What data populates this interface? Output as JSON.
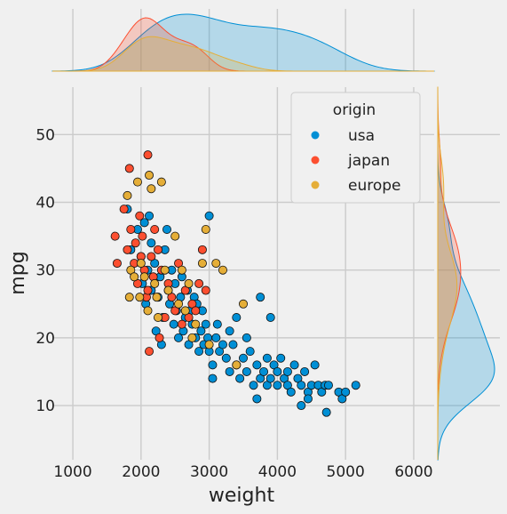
{
  "chart_data": {
    "type": "scatter",
    "xlabel": "weight",
    "ylabel": "mpg",
    "xlim": [
      700,
      6300
    ],
    "ylim": [
      2,
      57
    ],
    "xticks": [
      1000,
      2000,
      3000,
      4000,
      5000,
      6000
    ],
    "yticks": [
      10,
      20,
      30,
      40,
      50
    ],
    "grid": true,
    "legend": {
      "title": "origin",
      "placement": "top-right"
    },
    "marginals": {
      "top": "kde-by-series",
      "right": "kde-by-series"
    },
    "series": [
      {
        "name": "usa",
        "color": "#008fd5",
        "points": [
          [
            1800,
            39
          ],
          [
            1850,
            33
          ],
          [
            1950,
            36
          ],
          [
            2000,
            32
          ],
          [
            2020,
            28
          ],
          [
            2050,
            37
          ],
          [
            2070,
            25
          ],
          [
            2100,
            30
          ],
          [
            2120,
            38
          ],
          [
            2150,
            34
          ],
          [
            2150,
            27
          ],
          [
            2200,
            31
          ],
          [
            2220,
            21
          ],
          [
            2250,
            26
          ],
          [
            2280,
            29
          ],
          [
            2300,
            19
          ],
          [
            2320,
            23
          ],
          [
            2350,
            33
          ],
          [
            2380,
            36
          ],
          [
            2400,
            27
          ],
          [
            2420,
            25
          ],
          [
            2450,
            30
          ],
          [
            2480,
            22
          ],
          [
            2500,
            28
          ],
          [
            2520,
            24
          ],
          [
            2550,
            20
          ],
          [
            2580,
            26
          ],
          [
            2600,
            29
          ],
          [
            2620,
            21
          ],
          [
            2650,
            23
          ],
          [
            2680,
            27
          ],
          [
            2700,
            19
          ],
          [
            2720,
            24
          ],
          [
            2750,
            22
          ],
          [
            2780,
            26
          ],
          [
            2800,
            20
          ],
          [
            2820,
            25
          ],
          [
            2850,
            18
          ],
          [
            2880,
            21
          ],
          [
            2900,
            24
          ],
          [
            2920,
            19
          ],
          [
            2950,
            22
          ],
          [
            2980,
            20
          ],
          [
            3000,
            38
          ],
          [
            3000,
            18
          ],
          [
            3050,
            16
          ],
          [
            3050,
            14
          ],
          [
            3100,
            20
          ],
          [
            3120,
            22
          ],
          [
            3150,
            18
          ],
          [
            3200,
            19
          ],
          [
            3250,
            17
          ],
          [
            3300,
            21
          ],
          [
            3300,
            15
          ],
          [
            3350,
            19
          ],
          [
            3400,
            16
          ],
          [
            3400,
            23
          ],
          [
            3450,
            14
          ],
          [
            3500,
            17
          ],
          [
            3550,
            20
          ],
          [
            3550,
            15
          ],
          [
            3600,
            18
          ],
          [
            3650,
            13
          ],
          [
            3700,
            16
          ],
          [
            3700,
            11
          ],
          [
            3750,
            26
          ],
          [
            3750,
            14
          ],
          [
            3800,
            15
          ],
          [
            3850,
            17
          ],
          [
            3850,
            13
          ],
          [
            3900,
            23
          ],
          [
            3900,
            14
          ],
          [
            3950,
            16
          ],
          [
            4000,
            15
          ],
          [
            4000,
            13
          ],
          [
            4050,
            17
          ],
          [
            4100,
            14
          ],
          [
            4150,
            15
          ],
          [
            4150,
            13
          ],
          [
            4200,
            12
          ],
          [
            4250,
            16
          ],
          [
            4300,
            14
          ],
          [
            4350,
            13
          ],
          [
            4350,
            10
          ],
          [
            4400,
            15
          ],
          [
            4450,
            12
          ],
          [
            4450,
            11
          ],
          [
            4500,
            13
          ],
          [
            4550,
            16
          ],
          [
            4600,
            13
          ],
          [
            4650,
            12
          ],
          [
            4700,
            13
          ],
          [
            4720,
            9
          ],
          [
            4750,
            13
          ],
          [
            4900,
            12
          ],
          [
            4950,
            11
          ],
          [
            5000,
            12
          ],
          [
            5150,
            13
          ]
        ]
      },
      {
        "name": "japan",
        "color": "#fc4f30",
        "points": [
          [
            1620,
            35
          ],
          [
            1650,
            31
          ],
          [
            1750,
            39
          ],
          [
            1800,
            33
          ],
          [
            1830,
            45
          ],
          [
            1850,
            36
          ],
          [
            1900,
            31
          ],
          [
            1920,
            34
          ],
          [
            1950,
            28
          ],
          [
            1980,
            38
          ],
          [
            2000,
            32
          ],
          [
            2020,
            35
          ],
          [
            2050,
            30
          ],
          [
            2080,
            26
          ],
          [
            2100,
            47
          ],
          [
            2100,
            27
          ],
          [
            2120,
            18
          ],
          [
            2150,
            32
          ],
          [
            2180,
            29
          ],
          [
            2200,
            36
          ],
          [
            2250,
            33
          ],
          [
            2270,
            20
          ],
          [
            2300,
            30
          ],
          [
            2350,
            23
          ],
          [
            2400,
            28
          ],
          [
            2450,
            26
          ],
          [
            2500,
            24
          ],
          [
            2550,
            31
          ],
          [
            2600,
            22
          ],
          [
            2650,
            27
          ],
          [
            2700,
            23
          ],
          [
            2750,
            25
          ],
          [
            2800,
            24
          ],
          [
            2850,
            28
          ],
          [
            2900,
            33
          ],
          [
            2950,
            27
          ]
        ]
      },
      {
        "name": "europe",
        "color": "#e5ae38",
        "points": [
          [
            1800,
            41
          ],
          [
            1830,
            26
          ],
          [
            1850,
            30
          ],
          [
            1900,
            29
          ],
          [
            1950,
            43
          ],
          [
            1980,
            26
          ],
          [
            2000,
            31
          ],
          [
            2050,
            29
          ],
          [
            2100,
            24
          ],
          [
            2120,
            44
          ],
          [
            2150,
            42
          ],
          [
            2200,
            28
          ],
          [
            2230,
            26
          ],
          [
            2250,
            23
          ],
          [
            2300,
            43
          ],
          [
            2350,
            30
          ],
          [
            2400,
            27
          ],
          [
            2500,
            35
          ],
          [
            2550,
            25
          ],
          [
            2600,
            30
          ],
          [
            2650,
            24
          ],
          [
            2700,
            28
          ],
          [
            2750,
            20
          ],
          [
            2800,
            22
          ],
          [
            2900,
            31
          ],
          [
            2950,
            36
          ],
          [
            3000,
            19
          ],
          [
            3100,
            31
          ],
          [
            3200,
            30
          ],
          [
            3400,
            16
          ],
          [
            3500,
            25
          ]
        ]
      }
    ]
  }
}
